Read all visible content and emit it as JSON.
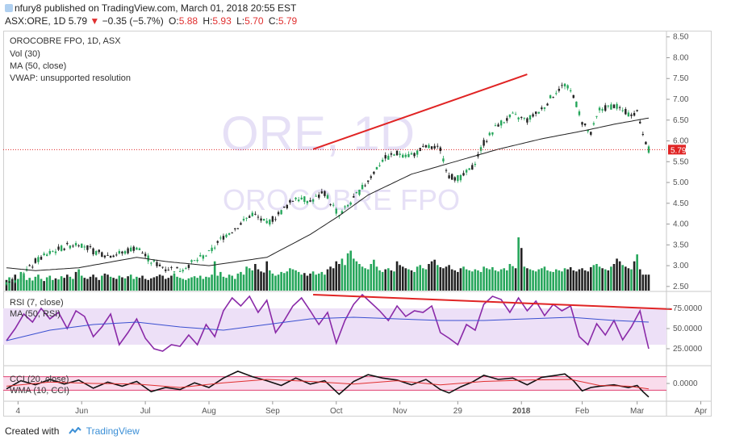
{
  "header": {
    "user": "nfury8",
    "published_text": "published on TradingView.com, March 01, 2018 20:55 EST",
    "symbol": "ASX:ORE, 1D",
    "price": "5.79",
    "change_arrow": "▼",
    "change": "−0.35 (−5.7%)",
    "o_label": "O:",
    "o_value": "5.88",
    "h_label": "H:",
    "h_value": "5.93",
    "l_label": "L:",
    "l_value": "5.70",
    "c_label": "C:",
    "c_value": "5.79"
  },
  "watermark": {
    "symbol": "ORE, 1D",
    "name": "OROCOBRE FPO"
  },
  "footer": {
    "created_with": "Created with",
    "brand": "TradingView"
  },
  "colors": {
    "up": "#26a65b",
    "down": "#222222",
    "ma": "#222222",
    "trendline": "#e02424",
    "price_tag": "#e02424",
    "rsi": "#8a2aa8",
    "rsi_ma": "#3a4fd0",
    "rsi_band": "#ede0f7",
    "cci": "#111111",
    "cci_wma": "#e03030",
    "cci_band": "#f9dcec"
  },
  "chart_data": [
    {
      "type": "candlestick",
      "title": "OROCOBRE FPO, 1D, ASX",
      "legend": [
        "Vol (30)",
        "MA (50, close)",
        "VWAP: unsupported resolution"
      ],
      "x_ticks": [
        "4",
        "Jun",
        "Jul",
        "Aug",
        "Sep",
        "Oct",
        "Nov",
        "29",
        "2018",
        "Feb",
        "Mar",
        "Apr"
      ],
      "ylim": [
        2.4,
        8.65
      ],
      "y_ticks": [
        "2.50",
        "3.00",
        "3.50",
        "4.00",
        "4.50",
        "5.00",
        "5.50",
        "6.00",
        "6.50",
        "7.00",
        "7.50",
        "8.00",
        "8.50"
      ],
      "last_price": "5.79",
      "ohlc_path": [
        [
          0,
          2.6
        ],
        [
          5,
          2.7
        ],
        [
          10,
          3.1
        ],
        [
          15,
          3.3
        ],
        [
          20,
          3.45
        ],
        [
          25,
          3.55
        ],
        [
          30,
          3.35
        ],
        [
          35,
          3.25
        ],
        [
          40,
          3.3
        ],
        [
          45,
          3.45
        ],
        [
          50,
          3.1
        ],
        [
          55,
          2.95
        ],
        [
          60,
          2.9
        ],
        [
          65,
          3.1
        ],
        [
          70,
          3.3
        ],
        [
          75,
          3.7
        ],
        [
          80,
          3.95
        ],
        [
          85,
          4.25
        ],
        [
          90,
          4.0
        ],
        [
          95,
          4.3
        ],
        [
          100,
          4.65
        ],
        [
          105,
          4.55
        ],
        [
          110,
          4.75
        ],
        [
          115,
          4.2
        ],
        [
          120,
          4.6
        ],
        [
          125,
          5.05
        ],
        [
          130,
          5.55
        ],
        [
          135,
          5.7
        ],
        [
          140,
          5.65
        ],
        [
          145,
          5.85
        ],
        [
          150,
          5.8
        ],
        [
          153,
          5.15
        ],
        [
          157,
          5.1
        ],
        [
          161,
          5.35
        ],
        [
          165,
          5.95
        ],
        [
          170,
          6.4
        ],
        [
          175,
          6.6
        ],
        [
          180,
          6.5
        ],
        [
          185,
          6.75
        ],
        [
          190,
          7.2
        ],
        [
          193,
          7.35
        ],
        [
          196,
          7.1
        ],
        [
          199,
          6.45
        ],
        [
          202,
          6.15
        ],
        [
          205,
          6.75
        ],
        [
          210,
          6.85
        ],
        [
          215,
          6.65
        ],
        [
          218,
          6.7
        ],
        [
          220,
          6.2
        ],
        [
          222,
          5.79
        ]
      ],
      "ma50": [
        [
          0,
          2.95
        ],
        [
          10,
          2.88
        ],
        [
          25,
          2.95
        ],
        [
          45,
          3.2
        ],
        [
          55,
          3.1
        ],
        [
          70,
          3.0
        ],
        [
          90,
          3.2
        ],
        [
          105,
          3.75
        ],
        [
          115,
          4.2
        ],
        [
          125,
          4.7
        ],
        [
          140,
          5.2
        ],
        [
          155,
          5.5
        ],
        [
          170,
          5.8
        ],
        [
          185,
          6.05
        ],
        [
          200,
          6.25
        ],
        [
          210,
          6.4
        ],
        [
          222,
          6.55
        ]
      ],
      "volume": [
        0.2,
        0.25,
        0.18,
        0.3,
        0.22,
        0.35,
        0.28,
        0.2,
        0.24,
        0.19,
        0.26,
        0.3,
        0.22,
        0.18,
        0.25,
        0.28,
        0.2,
        0.23,
        0.21,
        0.27,
        0.24,
        0.3,
        0.26,
        0.22,
        0.35,
        0.4,
        0.28,
        0.24,
        0.22,
        0.26,
        0.3,
        0.25,
        0.2,
        0.28,
        0.32,
        0.3,
        0.26,
        0.24,
        0.22,
        0.28,
        0.25,
        0.23,
        0.27,
        0.3,
        0.22,
        0.26,
        0.24,
        0.28,
        0.22,
        0.2,
        0.23,
        0.25,
        0.27,
        0.3,
        0.28,
        0.22,
        0.24,
        0.28,
        0.32,
        0.26,
        0.24,
        0.22,
        0.2,
        0.23,
        0.25,
        0.27,
        0.24,
        0.28,
        0.22,
        0.26,
        0.25,
        0.3,
        0.55,
        0.28,
        0.35,
        0.26,
        0.24,
        0.3,
        0.28,
        0.22,
        0.32,
        0.35,
        0.3,
        0.45,
        0.42,
        0.38,
        0.5,
        0.4,
        0.36,
        0.34,
        0.55,
        0.38,
        0.32,
        0.28,
        0.3,
        0.35,
        0.33,
        0.36,
        0.42,
        0.4,
        0.38,
        0.35,
        0.3,
        0.33,
        0.28,
        0.32,
        0.36,
        0.3,
        0.32,
        0.35,
        0.3,
        0.4,
        0.45,
        0.42,
        0.55,
        0.5,
        0.6,
        0.48,
        0.7,
        0.75,
        0.6,
        0.55,
        0.5,
        0.45,
        0.42,
        0.4,
        0.5,
        0.58,
        0.45,
        0.38,
        0.35,
        0.4,
        0.42,
        0.38,
        0.36,
        0.55,
        0.48,
        0.45,
        0.42,
        0.4,
        0.38,
        0.35,
        0.45,
        0.48,
        0.42,
        0.4,
        0.5,
        0.55,
        0.58,
        0.48,
        0.44,
        0.42,
        0.45,
        0.48,
        0.4,
        0.38,
        0.35,
        0.42,
        0.45,
        0.4,
        0.38,
        0.36,
        0.4,
        0.38,
        0.35,
        0.45,
        0.42,
        0.4,
        0.44,
        0.38,
        0.36,
        0.4,
        0.42,
        0.38,
        0.5,
        0.46,
        0.42,
        1.0,
        0.8,
        0.45,
        0.42,
        0.4,
        0.38,
        0.36,
        0.4,
        0.42,
        0.45,
        0.38,
        0.36,
        0.35,
        0.4,
        0.38,
        0.36,
        0.42,
        0.4,
        0.44,
        0.38,
        0.36,
        0.4,
        0.42,
        0.38,
        0.36,
        0.44,
        0.48,
        0.5,
        0.45,
        0.42,
        0.4,
        0.38,
        0.45,
        0.5,
        0.6,
        0.55,
        0.48,
        0.45,
        0.42,
        0.4,
        0.55,
        0.68,
        0.4
      ],
      "trendline": [
        [
          106,
          5.8
        ],
        [
          180,
          7.6
        ]
      ]
    },
    {
      "type": "line",
      "title": "RSI (7, close)",
      "legend": [
        "RSI (7, close)",
        "MA (50, RSI)"
      ],
      "ylim": [
        5,
        95
      ],
      "y_ticks": [
        "25.0000",
        "50.0000",
        "75.0000"
      ],
      "band": [
        30,
        75
      ],
      "rsi_path": [
        [
          0,
          35
        ],
        [
          3,
          50
        ],
        [
          6,
          68
        ],
        [
          9,
          58
        ],
        [
          12,
          75
        ],
        [
          15,
          62
        ],
        [
          18,
          70
        ],
        [
          21,
          50
        ],
        [
          24,
          72
        ],
        [
          27,
          65
        ],
        [
          30,
          40
        ],
        [
          33,
          52
        ],
        [
          36,
          68
        ],
        [
          39,
          30
        ],
        [
          42,
          45
        ],
        [
          45,
          62
        ],
        [
          48,
          38
        ],
        [
          51,
          25
        ],
        [
          54,
          22
        ],
        [
          57,
          30
        ],
        [
          60,
          28
        ],
        [
          63,
          42
        ],
        [
          66,
          30
        ],
        [
          69,
          55
        ],
        [
          72,
          40
        ],
        [
          75,
          72
        ],
        [
          78,
          88
        ],
        [
          81,
          78
        ],
        [
          84,
          90
        ],
        [
          87,
          70
        ],
        [
          90,
          85
        ],
        [
          93,
          45
        ],
        [
          96,
          60
        ],
        [
          99,
          78
        ],
        [
          102,
          88
        ],
        [
          105,
          72
        ],
        [
          108,
          55
        ],
        [
          111,
          70
        ],
        [
          114,
          32
        ],
        [
          117,
          60
        ],
        [
          120,
          80
        ],
        [
          123,
          92
        ],
        [
          126,
          82
        ],
        [
          129,
          72
        ],
        [
          132,
          60
        ],
        [
          135,
          78
        ],
        [
          138,
          65
        ],
        [
          141,
          72
        ],
        [
          144,
          70
        ],
        [
          147,
          78
        ],
        [
          150,
          45
        ],
        [
          153,
          38
        ],
        [
          156,
          30
        ],
        [
          159,
          55
        ],
        [
          162,
          48
        ],
        [
          165,
          80
        ],
        [
          168,
          90
        ],
        [
          171,
          86
        ],
        [
          174,
          70
        ],
        [
          177,
          88
        ],
        [
          180,
          72
        ],
        [
          183,
          84
        ],
        [
          186,
          66
        ],
        [
          189,
          80
        ],
        [
          192,
          72
        ],
        [
          195,
          78
        ],
        [
          198,
          40
        ],
        [
          201,
          30
        ],
        [
          204,
          56
        ],
        [
          207,
          42
        ],
        [
          210,
          60
        ],
        [
          213,
          36
        ],
        [
          216,
          52
        ],
        [
          219,
          72
        ],
        [
          221,
          40
        ],
        [
          222,
          25
        ]
      ],
      "rsi_ma": [
        [
          0,
          35
        ],
        [
          15,
          48
        ],
        [
          30,
          55
        ],
        [
          45,
          58
        ],
        [
          60,
          52
        ],
        [
          75,
          48
        ],
        [
          90,
          55
        ],
        [
          105,
          62
        ],
        [
          120,
          64
        ],
        [
          135,
          62
        ],
        [
          150,
          60
        ],
        [
          165,
          60
        ],
        [
          180,
          62
        ],
        [
          195,
          64
        ],
        [
          210,
          60
        ],
        [
          222,
          58
        ]
      ],
      "trendline": [
        [
          106,
          92
        ],
        [
          230,
          74
        ]
      ]
    },
    {
      "type": "line",
      "title": "CCI (20, close)",
      "legend": [
        "CCI (20, close)",
        "WMA (10, CCI)"
      ],
      "ylim": [
        -250,
        250
      ],
      "y_ticks": [
        "0.0000"
      ],
      "band": [
        -100,
        100
      ],
      "cci_path": [
        [
          0,
          -80
        ],
        [
          5,
          40
        ],
        [
          10,
          -20
        ],
        [
          15,
          60
        ],
        [
          20,
          -10
        ],
        [
          25,
          50
        ],
        [
          30,
          -70
        ],
        [
          35,
          20
        ],
        [
          40,
          -40
        ],
        [
          45,
          30
        ],
        [
          50,
          -120
        ],
        [
          55,
          -60
        ],
        [
          60,
          -90
        ],
        [
          65,
          10
        ],
        [
          70,
          -60
        ],
        [
          75,
          80
        ],
        [
          80,
          180
        ],
        [
          85,
          100
        ],
        [
          90,
          40
        ],
        [
          95,
          -30
        ],
        [
          100,
          80
        ],
        [
          105,
          -10
        ],
        [
          110,
          40
        ],
        [
          115,
          -160
        ],
        [
          120,
          30
        ],
        [
          125,
          130
        ],
        [
          130,
          80
        ],
        [
          135,
          50
        ],
        [
          140,
          -20
        ],
        [
          145,
          60
        ],
        [
          150,
          -90
        ],
        [
          153,
          -140
        ],
        [
          157,
          -50
        ],
        [
          161,
          20
        ],
        [
          165,
          120
        ],
        [
          170,
          60
        ],
        [
          175,
          80
        ],
        [
          180,
          -20
        ],
        [
          185,
          90
        ],
        [
          190,
          120
        ],
        [
          193,
          140
        ],
        [
          196,
          40
        ],
        [
          199,
          -110
        ],
        [
          202,
          -60
        ],
        [
          205,
          -40
        ],
        [
          210,
          -20
        ],
        [
          215,
          -60
        ],
        [
          218,
          -30
        ],
        [
          220,
          -120
        ],
        [
          222,
          -200
        ]
      ],
      "wma_path": [
        [
          0,
          -40
        ],
        [
          15,
          20
        ],
        [
          30,
          0
        ],
        [
          45,
          -10
        ],
        [
          60,
          -60
        ],
        [
          75,
          10
        ],
        [
          90,
          60
        ],
        [
          105,
          30
        ],
        [
          120,
          -10
        ],
        [
          135,
          40
        ],
        [
          150,
          -20
        ],
        [
          165,
          30
        ],
        [
          180,
          50
        ],
        [
          195,
          60
        ],
        [
          205,
          -30
        ],
        [
          215,
          -40
        ],
        [
          222,
          -80
        ]
      ]
    }
  ]
}
